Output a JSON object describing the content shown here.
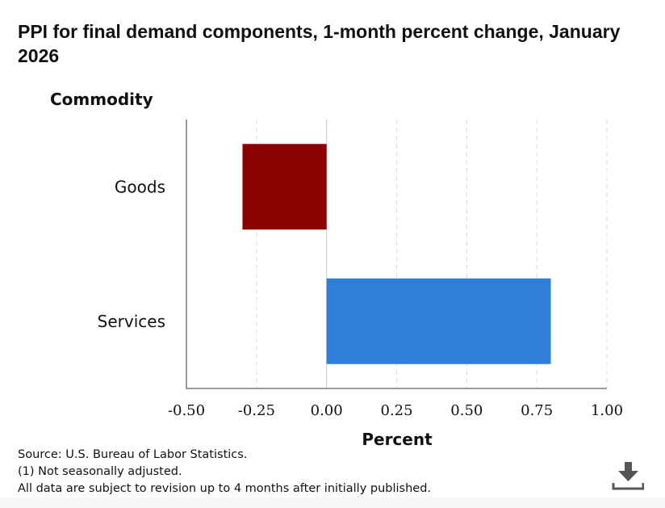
{
  "chart_data": {
    "type": "bar",
    "orientation": "horizontal",
    "title": "PPI for final demand components, 1-month percent change, January 2026",
    "ylabel": "Commodity",
    "xlabel": "Percent",
    "categories": [
      "Goods",
      "Services"
    ],
    "values": [
      -0.3,
      0.8
    ],
    "colors": [
      "#8b0000",
      "#2f7ed8"
    ],
    "xlim": [
      -0.5,
      1.0
    ],
    "xticks": [
      "-0.50",
      "-0.25",
      "0.00",
      "0.25",
      "0.50",
      "0.75",
      "1.00"
    ],
    "xtick_values": [
      -0.5,
      -0.25,
      0,
      0.25,
      0.5,
      0.75,
      1.0
    ],
    "grid": true
  },
  "notes": [
    "Source: U.S. Bureau of Labor Statistics.",
    "(1) Not seasonally adjusted.",
    "All data are subject to revision up to 4 months after initially published."
  ],
  "download_icon": "download-icon"
}
